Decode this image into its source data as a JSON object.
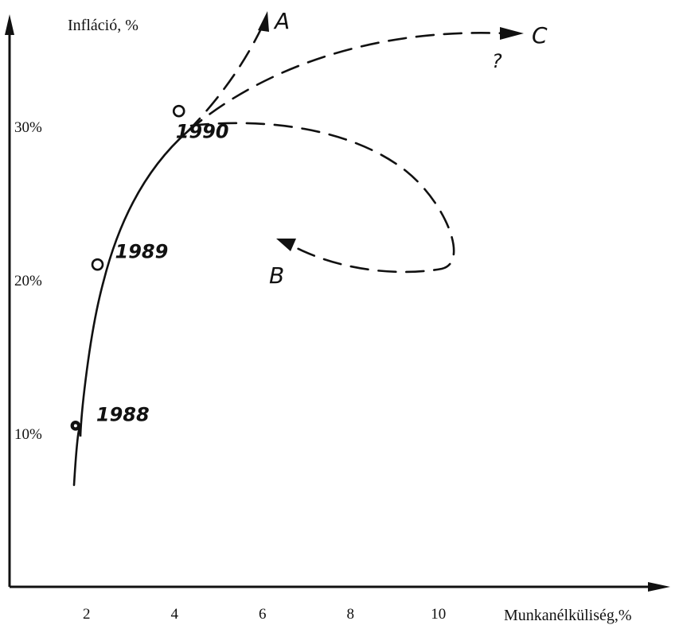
{
  "chart_data": {
    "type": "line",
    "ylabel": "Infláció, %",
    "xlabel": "Munkanélküliség,%",
    "x_ticks": [
      2,
      4,
      6,
      8,
      10
    ],
    "y_ticks": [
      "10%",
      "20%",
      "30%"
    ],
    "y_tick_values": [
      10,
      20,
      30
    ],
    "xlim": [
      0,
      12
    ],
    "ylim": [
      0,
      40
    ],
    "series": [
      {
        "points": [
          {
            "x": 1.75,
            "y": 10.5,
            "label": "1988"
          },
          {
            "x": 2.25,
            "y": 21,
            "label": "1989"
          },
          {
            "x": 4.1,
            "y": 31,
            "label": "1990"
          }
        ]
      }
    ],
    "scenarios": [
      {
        "label": "A"
      },
      {
        "label": "B"
      },
      {
        "label": "C",
        "note": "?"
      }
    ],
    "grid": false
  }
}
